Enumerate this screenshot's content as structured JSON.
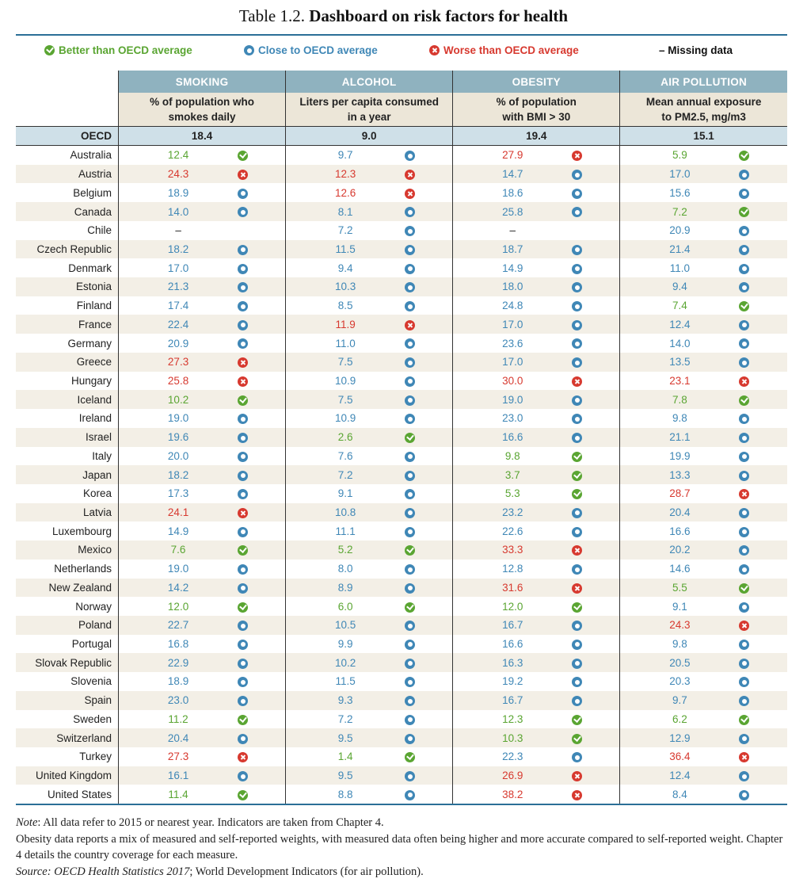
{
  "title": {
    "label": "Table 1.2.",
    "main": "Dashboard on risk factors for health"
  },
  "legend": {
    "better": "Better than OECD average",
    "close": "Close to OECD average",
    "worse": "Worse than OECD average",
    "missing": "– Missing data"
  },
  "colors": {
    "better": "#5aa532",
    "close": "#3f87b6",
    "worse": "#d7392f"
  },
  "columns": [
    {
      "group": "SMOKING",
      "desc1": "% of population who",
      "desc2": "smokes daily"
    },
    {
      "group": "ALCOHOL",
      "desc1": "Liters per capita consumed",
      "desc2": "in a year"
    },
    {
      "group": "OBESITY",
      "desc1": "% of population",
      "desc2": "with BMI > 30"
    },
    {
      "group": "AIR POLLUTION",
      "desc1": "Mean annual exposure",
      "desc2": "to PM2.5, mg/m3"
    }
  ],
  "oecd": {
    "name": "OECD",
    "values": [
      "18.4",
      "9.0",
      "19.4",
      "15.1"
    ]
  },
  "rows": [
    {
      "country": "Australia",
      "cells": [
        [
          "12.4",
          "g"
        ],
        [
          "9.7",
          "b"
        ],
        [
          "27.9",
          "r"
        ],
        [
          "5.9",
          "g"
        ]
      ]
    },
    {
      "country": "Austria",
      "cells": [
        [
          "24.3",
          "r"
        ],
        [
          "12.3",
          "r"
        ],
        [
          "14.7",
          "b"
        ],
        [
          "17.0",
          "b"
        ]
      ]
    },
    {
      "country": "Belgium",
      "cells": [
        [
          "18.9",
          "b"
        ],
        [
          "12.6",
          "r"
        ],
        [
          "18.6",
          "b"
        ],
        [
          "15.6",
          "b"
        ]
      ]
    },
    {
      "country": "Canada",
      "cells": [
        [
          "14.0",
          "b"
        ],
        [
          "8.1",
          "b"
        ],
        [
          "25.8",
          "b"
        ],
        [
          "7.2",
          "g"
        ]
      ]
    },
    {
      "country": "Chile",
      "cells": [
        [
          "–",
          ""
        ],
        [
          "7.2",
          "b"
        ],
        [
          "–",
          ""
        ],
        [
          "20.9",
          "b"
        ]
      ]
    },
    {
      "country": "Czech Republic",
      "cells": [
        [
          "18.2",
          "b"
        ],
        [
          "11.5",
          "b"
        ],
        [
          "18.7",
          "b"
        ],
        [
          "21.4",
          "b"
        ]
      ]
    },
    {
      "country": "Denmark",
      "cells": [
        [
          "17.0",
          "b"
        ],
        [
          "9.4",
          "b"
        ],
        [
          "14.9",
          "b"
        ],
        [
          "11.0",
          "b"
        ]
      ]
    },
    {
      "country": "Estonia",
      "cells": [
        [
          "21.3",
          "b"
        ],
        [
          "10.3",
          "b"
        ],
        [
          "18.0",
          "b"
        ],
        [
          "9.4",
          "b"
        ]
      ]
    },
    {
      "country": "Finland",
      "cells": [
        [
          "17.4",
          "b"
        ],
        [
          "8.5",
          "b"
        ],
        [
          "24.8",
          "b"
        ],
        [
          "7.4",
          "g"
        ]
      ]
    },
    {
      "country": "France",
      "cells": [
        [
          "22.4",
          "b"
        ],
        [
          "11.9",
          "r"
        ],
        [
          "17.0",
          "b"
        ],
        [
          "12.4",
          "b"
        ]
      ]
    },
    {
      "country": "Germany",
      "cells": [
        [
          "20.9",
          "b"
        ],
        [
          "11.0",
          "b"
        ],
        [
          "23.6",
          "b"
        ],
        [
          "14.0",
          "b"
        ]
      ]
    },
    {
      "country": "Greece",
      "cells": [
        [
          "27.3",
          "r"
        ],
        [
          "7.5",
          "b"
        ],
        [
          "17.0",
          "b"
        ],
        [
          "13.5",
          "b"
        ]
      ]
    },
    {
      "country": "Hungary",
      "cells": [
        [
          "25.8",
          "r"
        ],
        [
          "10.9",
          "b"
        ],
        [
          "30.0",
          "r"
        ],
        [
          "23.1",
          "r"
        ]
      ]
    },
    {
      "country": "Iceland",
      "cells": [
        [
          "10.2",
          "g"
        ],
        [
          "7.5",
          "b"
        ],
        [
          "19.0",
          "b"
        ],
        [
          "7.8",
          "g"
        ]
      ]
    },
    {
      "country": "Ireland",
      "cells": [
        [
          "19.0",
          "b"
        ],
        [
          "10.9",
          "b"
        ],
        [
          "23.0",
          "b"
        ],
        [
          "9.8",
          "b"
        ]
      ]
    },
    {
      "country": "Israel",
      "cells": [
        [
          "19.6",
          "b"
        ],
        [
          "2.6",
          "g"
        ],
        [
          "16.6",
          "b"
        ],
        [
          "21.1",
          "b"
        ]
      ]
    },
    {
      "country": "Italy",
      "cells": [
        [
          "20.0",
          "b"
        ],
        [
          "7.6",
          "b"
        ],
        [
          "9.8",
          "g"
        ],
        [
          "19.9",
          "b"
        ]
      ]
    },
    {
      "country": "Japan",
      "cells": [
        [
          "18.2",
          "b"
        ],
        [
          "7.2",
          "b"
        ],
        [
          "3.7",
          "g"
        ],
        [
          "13.3",
          "b"
        ]
      ]
    },
    {
      "country": "Korea",
      "cells": [
        [
          "17.3",
          "b"
        ],
        [
          "9.1",
          "b"
        ],
        [
          "5.3",
          "g"
        ],
        [
          "28.7",
          "r"
        ]
      ]
    },
    {
      "country": "Latvia",
      "cells": [
        [
          "24.1",
          "r"
        ],
        [
          "10.8",
          "b"
        ],
        [
          "23.2",
          "b"
        ],
        [
          "20.4",
          "b"
        ]
      ]
    },
    {
      "country": "Luxembourg",
      "cells": [
        [
          "14.9",
          "b"
        ],
        [
          "11.1",
          "b"
        ],
        [
          "22.6",
          "b"
        ],
        [
          "16.6",
          "b"
        ]
      ]
    },
    {
      "country": "Mexico",
      "cells": [
        [
          "7.6",
          "g"
        ],
        [
          "5.2",
          "g"
        ],
        [
          "33.3",
          "r"
        ],
        [
          "20.2",
          "b"
        ]
      ]
    },
    {
      "country": "Netherlands",
      "cells": [
        [
          "19.0",
          "b"
        ],
        [
          "8.0",
          "b"
        ],
        [
          "12.8",
          "b"
        ],
        [
          "14.6",
          "b"
        ]
      ]
    },
    {
      "country": "New Zealand",
      "cells": [
        [
          "14.2",
          "b"
        ],
        [
          "8.9",
          "b"
        ],
        [
          "31.6",
          "r"
        ],
        [
          "5.5",
          "g"
        ]
      ]
    },
    {
      "country": "Norway",
      "cells": [
        [
          "12.0",
          "g"
        ],
        [
          "6.0",
          "g"
        ],
        [
          "12.0",
          "g"
        ],
        [
          "9.1",
          "b"
        ]
      ]
    },
    {
      "country": "Poland",
      "cells": [
        [
          "22.7",
          "b"
        ],
        [
          "10.5",
          "b"
        ],
        [
          "16.7",
          "b"
        ],
        [
          "24.3",
          "r"
        ]
      ]
    },
    {
      "country": "Portugal",
      "cells": [
        [
          "16.8",
          "b"
        ],
        [
          "9.9",
          "b"
        ],
        [
          "16.6",
          "b"
        ],
        [
          "9.8",
          "b"
        ]
      ]
    },
    {
      "country": "Slovak Republic",
      "cells": [
        [
          "22.9",
          "b"
        ],
        [
          "10.2",
          "b"
        ],
        [
          "16.3",
          "b"
        ],
        [
          "20.5",
          "b"
        ]
      ]
    },
    {
      "country": "Slovenia",
      "cells": [
        [
          "18.9",
          "b"
        ],
        [
          "11.5",
          "b"
        ],
        [
          "19.2",
          "b"
        ],
        [
          "20.3",
          "b"
        ]
      ]
    },
    {
      "country": "Spain",
      "cells": [
        [
          "23.0",
          "b"
        ],
        [
          "9.3",
          "b"
        ],
        [
          "16.7",
          "b"
        ],
        [
          "9.7",
          "b"
        ]
      ]
    },
    {
      "country": "Sweden",
      "cells": [
        [
          "11.2",
          "g"
        ],
        [
          "7.2",
          "b"
        ],
        [
          "12.3",
          "g"
        ],
        [
          "6.2",
          "g"
        ]
      ]
    },
    {
      "country": "Switzerland",
      "cells": [
        [
          "20.4",
          "b"
        ],
        [
          "9.5",
          "b"
        ],
        [
          "10.3",
          "g"
        ],
        [
          "12.9",
          "b"
        ]
      ]
    },
    {
      "country": "Turkey",
      "cells": [
        [
          "27.3",
          "r"
        ],
        [
          "1.4",
          "g"
        ],
        [
          "22.3",
          "b"
        ],
        [
          "36.4",
          "r"
        ]
      ]
    },
    {
      "country": "United Kingdom",
      "cells": [
        [
          "16.1",
          "b"
        ],
        [
          "9.5",
          "b"
        ],
        [
          "26.9",
          "r"
        ],
        [
          "12.4",
          "b"
        ]
      ]
    },
    {
      "country": "United States",
      "cells": [
        [
          "11.4",
          "g"
        ],
        [
          "8.8",
          "b"
        ],
        [
          "38.2",
          "r"
        ],
        [
          "8.4",
          "b"
        ]
      ]
    }
  ],
  "notes": {
    "note_label": "Note",
    "note_text": ": All data refer to 2015 or nearest year. Indicators are taken from Chapter 4.",
    "note_line2": "Obesity data reports a mix of measured and self-reported weights, with measured data often being higher and more accurate compared to self-reported weight. Chapter 4 details the country coverage for each measure.",
    "source_label": "Source",
    "source_italic": ": OECD Health Statistics 2017",
    "source_rest": "; World Development Indicators (for air pollution)."
  }
}
